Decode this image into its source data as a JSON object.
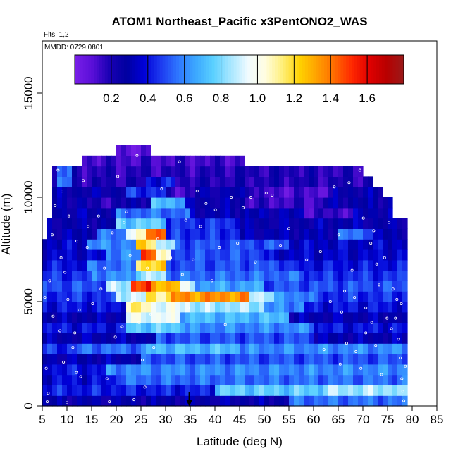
{
  "chart_data": {
    "type": "heatmap",
    "title": "ATOM1 Northeast_Pacific x3PentONO2_WAS",
    "flights_label": "Flts: 1,2",
    "date_label": "MMDD: 0729,0801",
    "xlabel": "Latitude (deg N)",
    "ylabel": "Altitude (m)",
    "xlim": [
      5,
      85
    ],
    "ylim": [
      0,
      17500
    ],
    "x_ticks": [
      5,
      10,
      15,
      20,
      25,
      30,
      35,
      40,
      45,
      50,
      55,
      60,
      65,
      70,
      75,
      80,
      85
    ],
    "y_ticks": [
      0,
      5000,
      10000,
      15000
    ],
    "colorbar": {
      "range": [
        0,
        1.8
      ],
      "ticks": [
        0.2,
        0.4,
        0.6,
        0.8,
        1.0,
        1.2,
        1.4,
        1.6
      ],
      "tick_labels": [
        "0.2",
        "0.4",
        "0.6",
        "0.8",
        "1.0",
        "1.2",
        "1.4",
        "1.6"
      ],
      "colors": [
        "#7a1fe8",
        "#5a0fd8",
        "#1a00b4",
        "#0000a0",
        "#0000d8",
        "#1e3cf0",
        "#2f78ff",
        "#3ca8ff",
        "#5ad0ff",
        "#a6e6ff",
        "#f0fbff",
        "#fffde0",
        "#ffef7a",
        "#ffd200",
        "#ffa000",
        "#ff6a00",
        "#ff2800",
        "#e00000",
        "#b80000",
        "#9a1a1a"
      ]
    },
    "marker_latitude": 34.8,
    "altitude_bin_m": 500,
    "latitude_bin_deg": 1,
    "layers": [
      {
        "alt": 0,
        "lat": [
          5,
          79
        ],
        "base": 0.28,
        "features": [
          [
            55,
            79,
            0.55
          ]
        ]
      },
      {
        "alt": 500,
        "lat": [
          5,
          79
        ],
        "base": 0.42,
        "features": [
          [
            40,
            79,
            0.75
          ],
          [
            62,
            78,
            0.85
          ]
        ]
      },
      {
        "alt": 1000,
        "lat": [
          5,
          79
        ],
        "base": 0.38,
        "features": [
          [
            20,
            79,
            0.55
          ]
        ]
      },
      {
        "alt": 1500,
        "lat": [
          5,
          79
        ],
        "base": 0.4,
        "features": [
          [
            18,
            79,
            0.6
          ]
        ]
      },
      {
        "alt": 2000,
        "lat": [
          5,
          79
        ],
        "base": 0.3,
        "features": [
          [
            25,
            79,
            0.5
          ]
        ]
      },
      {
        "alt": 2500,
        "lat": [
          5,
          79
        ],
        "base": 0.45,
        "features": [
          [
            12,
            26,
            0.55
          ],
          [
            26,
            45,
            0.7
          ],
          [
            45,
            79,
            0.6
          ]
        ]
      },
      {
        "alt": 3000,
        "lat": [
          5,
          79
        ],
        "base": 0.3,
        "features": [
          [
            28,
            60,
            0.5
          ]
        ]
      },
      {
        "alt": 3500,
        "lat": [
          5,
          79
        ],
        "base": 0.4,
        "features": [
          [
            22,
            34,
            0.75
          ],
          [
            34,
            60,
            0.6
          ]
        ]
      },
      {
        "alt": 4000,
        "lat": [
          5,
          79
        ],
        "base": 0.3,
        "features": [
          [
            22,
            33,
            0.95
          ],
          [
            33,
            55,
            0.7
          ]
        ]
      },
      {
        "alt": 4500,
        "lat": [
          5,
          79
        ],
        "base": 0.4,
        "features": [
          [
            22,
            27,
            1.1
          ],
          [
            27,
            35,
            0.95
          ],
          [
            35,
            50,
            0.85
          ],
          [
            50,
            58,
            0.6
          ]
        ]
      },
      {
        "alt": 5000,
        "lat": [
          5,
          79
        ],
        "base": 0.45,
        "features": [
          [
            20,
            26,
            0.9
          ],
          [
            26,
            31,
            1.15
          ],
          [
            31,
            47,
            1.35
          ],
          [
            47,
            52,
            0.9
          ],
          [
            52,
            60,
            0.6
          ]
        ]
      },
      {
        "alt": 5500,
        "lat": [
          5,
          79
        ],
        "base": 0.5,
        "features": [
          [
            18,
            23,
            0.85
          ],
          [
            23,
            27,
            1.5
          ],
          [
            27,
            33,
            1.3
          ],
          [
            33,
            36,
            0.9
          ],
          [
            36,
            50,
            0.65
          ]
        ]
      },
      {
        "alt": 6000,
        "lat": [
          5,
          79
        ],
        "base": 0.45,
        "features": [
          [
            15,
            24,
            0.6
          ],
          [
            24,
            30,
            0.85
          ],
          [
            30,
            58,
            0.55
          ]
        ]
      },
      {
        "alt": 6500,
        "lat": [
          5,
          79
        ],
        "base": 0.4,
        "features": [
          [
            14,
            24,
            0.55
          ],
          [
            24,
            30,
            1.2
          ],
          [
            30,
            55,
            0.5
          ]
        ]
      },
      {
        "alt": 7000,
        "lat": [
          5,
          79
        ],
        "base": 0.35,
        "features": [
          [
            18,
            25,
            0.6
          ],
          [
            25,
            28,
            1.5
          ],
          [
            28,
            31,
            1.0
          ],
          [
            31,
            50,
            0.5
          ]
        ]
      },
      {
        "alt": 7500,
        "lat": [
          5,
          79
        ],
        "base": 0.35,
        "features": [
          [
            14,
            24,
            0.6
          ],
          [
            24,
            28,
            1.2
          ],
          [
            28,
            32,
            0.85
          ],
          [
            32,
            55,
            0.5
          ]
        ]
      },
      {
        "alt": 8000,
        "lat": [
          6,
          79
        ],
        "base": 0.3,
        "features": [
          [
            16,
            22,
            0.55
          ],
          [
            22,
            26,
            1.0
          ],
          [
            26,
            30,
            1.45
          ],
          [
            30,
            45,
            0.45
          ],
          [
            65,
            72,
            0.55
          ]
        ]
      },
      {
        "alt": 8500,
        "lat": [
          6,
          79
        ],
        "base": 0.28,
        "features": [
          [
            20,
            30,
            0.75
          ],
          [
            30,
            45,
            0.45
          ],
          [
            60,
            70,
            0.3
          ]
        ]
      },
      {
        "alt": 9000,
        "lat": [
          7,
          76
        ],
        "base": 0.3,
        "features": [
          [
            20,
            35,
            0.55
          ],
          [
            58,
            68,
            0.15
          ]
        ]
      },
      {
        "alt": 9500,
        "lat": [
          7,
          76
        ],
        "base": 0.28,
        "features": [
          [
            14,
            22,
            0.2
          ],
          [
            27,
            34,
            0.7
          ],
          [
            46,
            62,
            0.15
          ]
        ]
      },
      {
        "alt": 10000,
        "lat": [
          7,
          74
        ],
        "base": 0.28,
        "features": [
          [
            22,
            30,
            0.45
          ],
          [
            30,
            36,
            0.15
          ],
          [
            48,
            64,
            0.12
          ]
        ]
      },
      {
        "alt": 10500,
        "lat": [
          7,
          72
        ],
        "base": 0.2,
        "features": [
          [
            8,
            11,
            0.55
          ],
          [
            26,
            32,
            0.4
          ]
        ]
      },
      {
        "alt": 11000,
        "lat": [
          7,
          70
        ],
        "base": 0.18,
        "features": [
          [
            8,
            11,
            0.55
          ],
          [
            40,
            60,
            0.2
          ]
        ]
      },
      {
        "alt": 11500,
        "lat": [
          13,
          46
        ],
        "base": 0.14,
        "features": []
      },
      {
        "alt": 12000,
        "lat": [
          20,
          27
        ],
        "base": 0.08,
        "features": []
      }
    ],
    "obs_points": [
      [
        5.5,
        5200
      ],
      [
        5.8,
        1800
      ],
      [
        6.2,
        600
      ],
      [
        6.0,
        200
      ],
      [
        6.5,
        6000
      ],
      [
        7.0,
        8200
      ],
      [
        7.6,
        9600
      ],
      [
        7.2,
        4300
      ],
      [
        8.2,
        11300
      ],
      [
        9.0,
        10300
      ],
      [
        8.6,
        3600
      ],
      [
        9.3,
        2100
      ],
      [
        8.8,
        7100
      ],
      [
        9.6,
        6400
      ],
      [
        10.4,
        9100
      ],
      [
        10.2,
        5100
      ],
      [
        10.0,
        150
      ],
      [
        11.2,
        2800
      ],
      [
        11.6,
        3500
      ],
      [
        12.0,
        7900
      ],
      [
        12.5,
        4600
      ],
      [
        11.9,
        1600
      ],
      [
        12.8,
        1400
      ],
      [
        13.3,
        10800
      ],
      [
        14.1,
        7600
      ],
      [
        14.3,
        8600
      ],
      [
        15.2,
        4900
      ],
      [
        16.4,
        9100
      ],
      [
        16.9,
        5600
      ],
      [
        17.6,
        6600
      ],
      [
        18.1,
        1300
      ],
      [
        18.6,
        200
      ],
      [
        19.2,
        8300
      ],
      [
        19.8,
        3300
      ],
      [
        20.3,
        11000
      ],
      [
        21.2,
        3800
      ],
      [
        21.6,
        8800
      ],
      [
        22.1,
        9300
      ],
      [
        22.8,
        7200
      ],
      [
        23.2,
        5000
      ],
      [
        23.6,
        300
      ],
      [
        24.2,
        12000
      ],
      [
        24.6,
        4000
      ],
      [
        25.3,
        2200
      ],
      [
        25.8,
        900
      ],
      [
        26.3,
        6600
      ],
      [
        27.0,
        4400
      ],
      [
        27.6,
        2800
      ],
      [
        28.4,
        8000
      ],
      [
        29.2,
        10400
      ],
      [
        31.0,
        7100
      ],
      [
        32.8,
        11700
      ],
      [
        33.4,
        6300
      ],
      [
        34.1,
        8900
      ],
      [
        34.6,
        4700
      ],
      [
        35.6,
        7000
      ],
      [
        36.4,
        10300
      ],
      [
        37.1,
        8600
      ],
      [
        38.2,
        9700
      ],
      [
        39.4,
        6000
      ],
      [
        40.1,
        9400
      ],
      [
        40.9,
        7600
      ],
      [
        42.1,
        3900
      ],
      [
        43.3,
        10000
      ],
      [
        44.6,
        7800
      ],
      [
        45.7,
        9500
      ],
      [
        47.3,
        10000
      ],
      [
        48.2,
        6900
      ],
      [
        50.4,
        10200
      ],
      [
        51.6,
        10100
      ],
      [
        53.3,
        7700
      ],
      [
        55.0,
        8500
      ],
      [
        58.6,
        7000
      ],
      [
        61.4,
        7400
      ],
      [
        62.1,
        2700
      ],
      [
        63.4,
        5000
      ],
      [
        64.2,
        10500
      ],
      [
        65.1,
        8200
      ],
      [
        65.7,
        4500
      ],
      [
        66.3,
        5500
      ],
      [
        67.2,
        10700
      ],
      [
        68.3,
        5200
      ],
      [
        69.4,
        11300
      ],
      [
        70.1,
        9000
      ],
      [
        70.6,
        4700
      ],
      [
        71.6,
        7800
      ],
      [
        72.2,
        8400
      ],
      [
        72.8,
        6800
      ],
      [
        73.3,
        5800
      ],
      [
        74.4,
        7100
      ],
      [
        75.3,
        8800
      ],
      [
        76.1,
        5600
      ],
      [
        76.6,
        4200
      ],
      [
        77.2,
        3200
      ],
      [
        77.6,
        2300
      ],
      [
        77.9,
        1300
      ],
      [
        78.1,
        700
      ],
      [
        78.3,
        250
      ],
      [
        78.6,
        1900
      ],
      [
        77.8,
        4900
      ],
      [
        76.9,
        5100
      ],
      [
        75.8,
        3700
      ],
      [
        74.9,
        4200
      ],
      [
        73.8,
        1500
      ],
      [
        72.6,
        2900
      ],
      [
        71.8,
        4000
      ],
      [
        70.6,
        3500
      ],
      [
        69.6,
        1800
      ],
      [
        68.6,
        2600
      ],
      [
        67.8,
        6500
      ],
      [
        66.7,
        3000
      ],
      [
        65.4,
        2000
      ]
    ]
  }
}
